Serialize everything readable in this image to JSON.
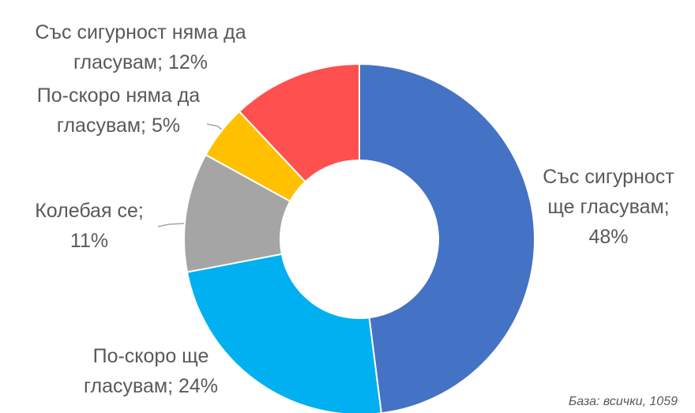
{
  "chart_data": {
    "type": "donut",
    "categories": [
      "Със сигурност ще гласувам",
      "По-скоро ще гласувам",
      "Колебая се",
      "По-скоро няма да гласувам",
      "Със сигурност няма да гласувам"
    ],
    "values": [
      48,
      24,
      11,
      5,
      12
    ],
    "value_labels": [
      "48%",
      "24%",
      "11%",
      "5%",
      "12%"
    ],
    "label_separator": "; ",
    "colors": [
      "#4472c4",
      "#00b0f0",
      "#a5a5a5",
      "#ffc000",
      "#ff5050"
    ],
    "footnote": "База: всички, 1059"
  }
}
